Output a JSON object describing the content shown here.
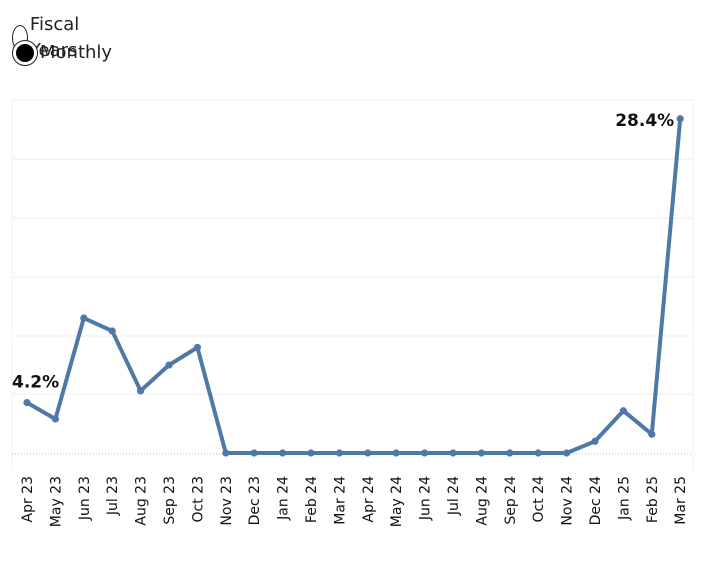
{
  "toggle": {
    "options": [
      {
        "label": "Fiscal Years",
        "selected": false
      },
      {
        "label": "Monthly",
        "selected": true
      }
    ]
  },
  "colors": {
    "line": "#4e79a7",
    "grid": "#ececec",
    "baseline": "#bdbdbd"
  },
  "chart_data": {
    "type": "line",
    "title": "",
    "xlabel": "",
    "ylabel": "",
    "categories": [
      "Apr 23",
      "May 23",
      "Jun 23",
      "Jul 23",
      "Aug 23",
      "Sep 23",
      "Oct 23",
      "Nov 23",
      "Dec 23",
      "Jan 24",
      "Feb 24",
      "Mar 24",
      "Apr 24",
      "May 24",
      "Jun 24",
      "Jul 24",
      "Aug 24",
      "Sep 24",
      "Oct 24",
      "Nov 24",
      "Dec 24",
      "Jan 25",
      "Feb 25",
      "Mar 25"
    ],
    "series": [
      {
        "values": [
          4.2,
          2.8,
          11.4,
          10.3,
          5.2,
          7.4,
          8.9,
          -0.1,
          -0.1,
          -0.1,
          -0.1,
          -0.1,
          -0.1,
          -0.1,
          -0.1,
          -0.1,
          -0.1,
          -0.1,
          -0.1,
          -0.1,
          0.9,
          3.5,
          1.5,
          28.4
        ]
      }
    ],
    "data_labels": [
      {
        "index": 0,
        "text": "4.2%"
      },
      {
        "index": 23,
        "text": "28.4%"
      }
    ],
    "ylim": [
      -0.1,
      30
    ],
    "grid": true,
    "y_ticks_shown": false
  }
}
